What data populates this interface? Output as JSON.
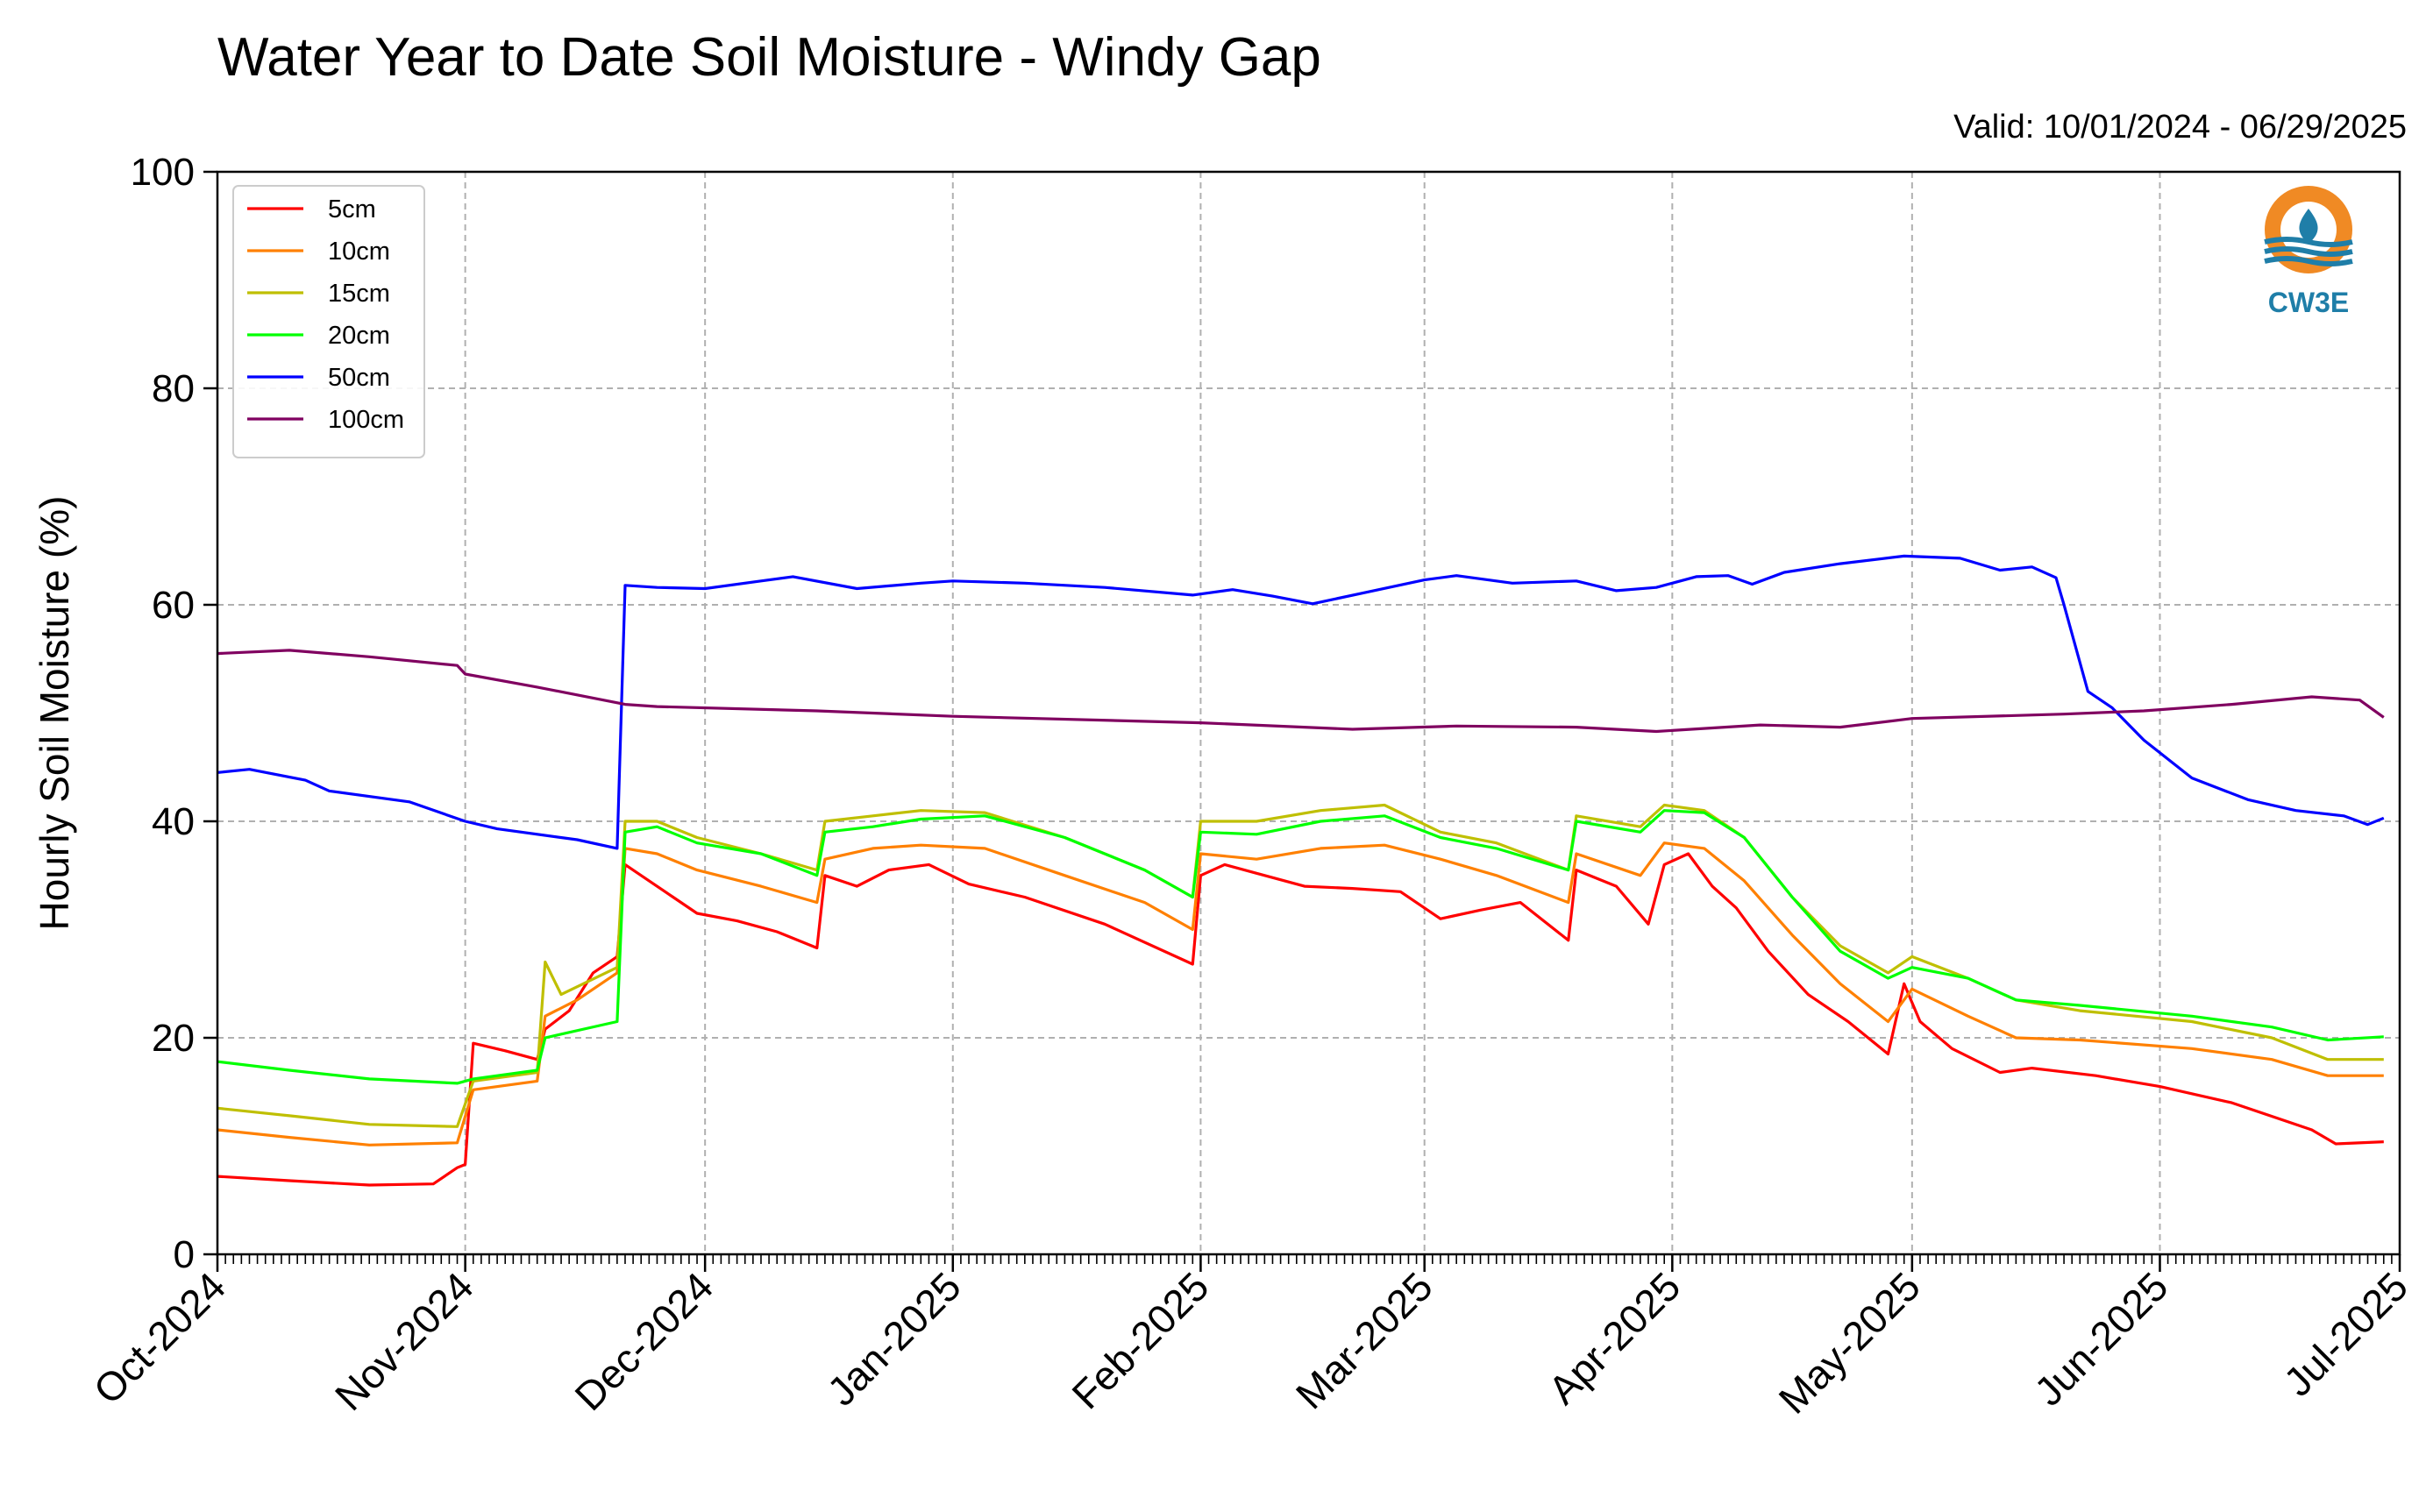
{
  "chart_data": {
    "type": "line",
    "title": "Water Year to Date Soil Moisture - Windy Gap",
    "subtitle": "Valid: 10/01/2024 - 06/29/2025",
    "ylabel": "Hourly Soil Moisture (%)",
    "xlabel": "",
    "ylim": [
      0,
      100
    ],
    "yticks": [
      0,
      20,
      40,
      60,
      80,
      100
    ],
    "xlim": [
      "2024-10-01",
      "2025-07-01"
    ],
    "xticks": [
      {
        "date": "2024-10-01",
        "label": "Oct-2024"
      },
      {
        "date": "2024-11-01",
        "label": "Nov-2024"
      },
      {
        "date": "2024-12-01",
        "label": "Dec-2024"
      },
      {
        "date": "2025-01-01",
        "label": "Jan-2025"
      },
      {
        "date": "2025-02-01",
        "label": "Feb-2025"
      },
      {
        "date": "2025-03-01",
        "label": "Mar-2025"
      },
      {
        "date": "2025-04-01",
        "label": "Apr-2025"
      },
      {
        "date": "2025-05-01",
        "label": "May-2025"
      },
      {
        "date": "2025-06-01",
        "label": "Jun-2025"
      },
      {
        "date": "2025-07-01",
        "label": "Jul-2025"
      }
    ],
    "grid": true,
    "legend_position": "top-left",
    "logo": {
      "text": "CW3E",
      "ring_color": "#f08a24",
      "wave_color": "#1f7ea8"
    },
    "series": [
      {
        "name": "5cm",
        "color": "#ff0000",
        "points": [
          [
            "2024-10-01",
            7.2
          ],
          [
            "2024-10-10",
            6.8
          ],
          [
            "2024-10-20",
            6.4
          ],
          [
            "2024-10-28",
            6.5
          ],
          [
            "2024-10-31",
            8.0
          ],
          [
            "2024-11-01",
            8.3
          ],
          [
            "2024-11-02",
            19.5
          ],
          [
            "2024-11-06",
            18.8
          ],
          [
            "2024-11-10",
            18.0
          ],
          [
            "2024-11-11",
            20.8
          ],
          [
            "2024-11-14",
            22.5
          ],
          [
            "2024-11-17",
            26.0
          ],
          [
            "2024-11-20",
            27.5
          ],
          [
            "2024-11-21",
            36.0
          ],
          [
            "2024-11-24",
            34.5
          ],
          [
            "2024-11-27",
            33.0
          ],
          [
            "2024-11-30",
            31.5
          ],
          [
            "2024-12-05",
            30.8
          ],
          [
            "2024-12-10",
            29.8
          ],
          [
            "2024-12-15",
            28.3
          ],
          [
            "2024-12-16",
            35.0
          ],
          [
            "2024-12-20",
            34.0
          ],
          [
            "2024-12-24",
            35.5
          ],
          [
            "2024-12-29",
            36.0
          ],
          [
            "2025-01-03",
            34.2
          ],
          [
            "2025-01-10",
            33.0
          ],
          [
            "2025-01-20",
            30.5
          ],
          [
            "2025-01-31",
            26.8
          ],
          [
            "2025-02-01",
            35.0
          ],
          [
            "2025-02-04",
            36.0
          ],
          [
            "2025-02-08",
            35.2
          ],
          [
            "2025-02-14",
            34.0
          ],
          [
            "2025-02-20",
            33.8
          ],
          [
            "2025-02-26",
            33.5
          ],
          [
            "2025-03-03",
            31.0
          ],
          [
            "2025-03-08",
            31.8
          ],
          [
            "2025-03-13",
            32.5
          ],
          [
            "2025-03-19",
            29.0
          ],
          [
            "2025-03-20",
            35.5
          ],
          [
            "2025-03-25",
            34.0
          ],
          [
            "2025-03-29",
            30.5
          ],
          [
            "2025-03-31",
            36.0
          ],
          [
            "2025-04-03",
            37.0
          ],
          [
            "2025-04-06",
            34.0
          ],
          [
            "2025-04-09",
            32.0
          ],
          [
            "2025-04-13",
            28.0
          ],
          [
            "2025-04-18",
            24.0
          ],
          [
            "2025-04-23",
            21.5
          ],
          [
            "2025-04-28",
            18.5
          ],
          [
            "2025-04-30",
            25.0
          ],
          [
            "2025-05-02",
            21.5
          ],
          [
            "2025-05-06",
            19.0
          ],
          [
            "2025-05-12",
            16.8
          ],
          [
            "2025-05-16",
            17.2
          ],
          [
            "2025-05-24",
            16.5
          ],
          [
            "2025-06-01",
            15.5
          ],
          [
            "2025-06-10",
            14.0
          ],
          [
            "2025-06-20",
            11.5
          ],
          [
            "2025-06-23",
            10.2
          ],
          [
            "2025-06-29",
            10.4
          ]
        ]
      },
      {
        "name": "10cm",
        "color": "#ff8000",
        "points": [
          [
            "2024-10-01",
            11.5
          ],
          [
            "2024-10-10",
            10.8
          ],
          [
            "2024-10-20",
            10.1
          ],
          [
            "2024-10-31",
            10.3
          ],
          [
            "2024-11-02",
            15.2
          ],
          [
            "2024-11-10",
            16.0
          ],
          [
            "2024-11-11",
            22.0
          ],
          [
            "2024-11-15",
            23.5
          ],
          [
            "2024-11-20",
            26.0
          ],
          [
            "2024-11-21",
            37.5
          ],
          [
            "2024-11-25",
            37.0
          ],
          [
            "2024-11-30",
            35.5
          ],
          [
            "2024-12-08",
            34.0
          ],
          [
            "2024-12-15",
            32.5
          ],
          [
            "2024-12-16",
            36.5
          ],
          [
            "2024-12-22",
            37.5
          ],
          [
            "2024-12-28",
            37.8
          ],
          [
            "2025-01-05",
            37.5
          ],
          [
            "2025-01-15",
            35.0
          ],
          [
            "2025-01-25",
            32.5
          ],
          [
            "2025-01-31",
            30.0
          ],
          [
            "2025-02-01",
            37.0
          ],
          [
            "2025-02-08",
            36.5
          ],
          [
            "2025-02-16",
            37.5
          ],
          [
            "2025-02-24",
            37.8
          ],
          [
            "2025-03-03",
            36.5
          ],
          [
            "2025-03-10",
            35.0
          ],
          [
            "2025-03-19",
            32.5
          ],
          [
            "2025-03-20",
            37.0
          ],
          [
            "2025-03-28",
            35.0
          ],
          [
            "2025-03-31",
            38.0
          ],
          [
            "2025-04-05",
            37.5
          ],
          [
            "2025-04-10",
            34.5
          ],
          [
            "2025-04-16",
            29.5
          ],
          [
            "2025-04-22",
            25.0
          ],
          [
            "2025-04-28",
            21.5
          ],
          [
            "2025-05-01",
            24.5
          ],
          [
            "2025-05-08",
            22.0
          ],
          [
            "2025-05-14",
            20.0
          ],
          [
            "2025-05-22",
            19.8
          ],
          [
            "2025-06-05",
            19.0
          ],
          [
            "2025-06-15",
            18.0
          ],
          [
            "2025-06-22",
            16.5
          ],
          [
            "2025-06-29",
            16.5
          ]
        ]
      },
      {
        "name": "15cm",
        "color": "#bfbf00",
        "points": [
          [
            "2024-10-01",
            13.5
          ],
          [
            "2024-10-10",
            12.8
          ],
          [
            "2024-10-20",
            12.0
          ],
          [
            "2024-10-31",
            11.8
          ],
          [
            "2024-11-02",
            16.0
          ],
          [
            "2024-11-10",
            16.8
          ],
          [
            "2024-11-11",
            27.0
          ],
          [
            "2024-11-13",
            24.0
          ],
          [
            "2024-11-20",
            26.5
          ],
          [
            "2024-11-21",
            40.0
          ],
          [
            "2024-11-25",
            40.0
          ],
          [
            "2024-11-30",
            38.5
          ],
          [
            "2024-12-08",
            37.0
          ],
          [
            "2024-12-15",
            35.5
          ],
          [
            "2024-12-16",
            40.0
          ],
          [
            "2024-12-22",
            40.5
          ],
          [
            "2024-12-28",
            41.0
          ],
          [
            "2025-01-05",
            40.8
          ],
          [
            "2025-01-15",
            38.5
          ],
          [
            "2025-01-25",
            35.5
          ],
          [
            "2025-01-31",
            33.0
          ],
          [
            "2025-02-01",
            40.0
          ],
          [
            "2025-02-08",
            40.0
          ],
          [
            "2025-02-16",
            41.0
          ],
          [
            "2025-02-24",
            41.5
          ],
          [
            "2025-03-03",
            39.0
          ],
          [
            "2025-03-10",
            38.0
          ],
          [
            "2025-03-19",
            35.5
          ],
          [
            "2025-03-20",
            40.5
          ],
          [
            "2025-03-28",
            39.5
          ],
          [
            "2025-03-31",
            41.5
          ],
          [
            "2025-04-05",
            41.0
          ],
          [
            "2025-04-10",
            38.5
          ],
          [
            "2025-04-16",
            33.0
          ],
          [
            "2025-04-22",
            28.5
          ],
          [
            "2025-04-28",
            26.0
          ],
          [
            "2025-05-01",
            27.5
          ],
          [
            "2025-05-08",
            25.5
          ],
          [
            "2025-05-14",
            23.5
          ],
          [
            "2025-05-22",
            22.5
          ],
          [
            "2025-06-05",
            21.5
          ],
          [
            "2025-06-15",
            20.0
          ],
          [
            "2025-06-22",
            18.0
          ],
          [
            "2025-06-29",
            18.0
          ]
        ]
      },
      {
        "name": "20cm",
        "color": "#00ff00",
        "points": [
          [
            "2024-10-01",
            17.8
          ],
          [
            "2024-10-10",
            17.0
          ],
          [
            "2024-10-20",
            16.2
          ],
          [
            "2024-10-31",
            15.8
          ],
          [
            "2024-11-02",
            16.2
          ],
          [
            "2024-11-10",
            17.0
          ],
          [
            "2024-11-11",
            20.0
          ],
          [
            "2024-11-20",
            21.5
          ],
          [
            "2024-11-21",
            39.0
          ],
          [
            "2024-11-25",
            39.5
          ],
          [
            "2024-11-30",
            38.0
          ],
          [
            "2024-12-08",
            37.0
          ],
          [
            "2024-12-15",
            35.0
          ],
          [
            "2024-12-16",
            39.0
          ],
          [
            "2024-12-22",
            39.5
          ],
          [
            "2024-12-28",
            40.2
          ],
          [
            "2025-01-05",
            40.5
          ],
          [
            "2025-01-15",
            38.5
          ],
          [
            "2025-01-25",
            35.5
          ],
          [
            "2025-01-31",
            33.0
          ],
          [
            "2025-02-01",
            39.0
          ],
          [
            "2025-02-08",
            38.8
          ],
          [
            "2025-02-16",
            40.0
          ],
          [
            "2025-02-24",
            40.5
          ],
          [
            "2025-03-03",
            38.5
          ],
          [
            "2025-03-10",
            37.5
          ],
          [
            "2025-03-19",
            35.5
          ],
          [
            "2025-03-20",
            40.0
          ],
          [
            "2025-03-28",
            39.0
          ],
          [
            "2025-03-31",
            41.0
          ],
          [
            "2025-04-05",
            40.8
          ],
          [
            "2025-04-10",
            38.5
          ],
          [
            "2025-04-16",
            33.0
          ],
          [
            "2025-04-22",
            28.0
          ],
          [
            "2025-04-28",
            25.5
          ],
          [
            "2025-05-01",
            26.5
          ],
          [
            "2025-05-08",
            25.5
          ],
          [
            "2025-05-14",
            23.5
          ],
          [
            "2025-05-22",
            23.0
          ],
          [
            "2025-06-05",
            22.0
          ],
          [
            "2025-06-15",
            21.0
          ],
          [
            "2025-06-22",
            19.8
          ],
          [
            "2025-06-29",
            20.1
          ]
        ]
      },
      {
        "name": "50cm",
        "color": "#0000ff",
        "points": [
          [
            "2024-10-01",
            44.5
          ],
          [
            "2024-10-05",
            44.8
          ],
          [
            "2024-10-12",
            43.8
          ],
          [
            "2024-10-15",
            42.8
          ],
          [
            "2024-10-25",
            41.8
          ],
          [
            "2024-11-01",
            40.0
          ],
          [
            "2024-11-05",
            39.3
          ],
          [
            "2024-11-15",
            38.3
          ],
          [
            "2024-11-20",
            37.5
          ],
          [
            "2024-11-21",
            61.8
          ],
          [
            "2024-11-25",
            61.6
          ],
          [
            "2024-12-01",
            61.5
          ],
          [
            "2024-12-08",
            62.2
          ],
          [
            "2024-12-12",
            62.6
          ],
          [
            "2024-12-20",
            61.5
          ],
          [
            "2024-12-28",
            62.0
          ],
          [
            "2025-01-01",
            62.2
          ],
          [
            "2025-01-10",
            62.0
          ],
          [
            "2025-01-20",
            61.6
          ],
          [
            "2025-01-31",
            60.9
          ],
          [
            "2025-02-05",
            61.4
          ],
          [
            "2025-02-10",
            60.8
          ],
          [
            "2025-02-15",
            60.1
          ],
          [
            "2025-02-22",
            61.2
          ],
          [
            "2025-03-01",
            62.3
          ],
          [
            "2025-03-05",
            62.7
          ],
          [
            "2025-03-12",
            62.0
          ],
          [
            "2025-03-20",
            62.2
          ],
          [
            "2025-03-25",
            61.3
          ],
          [
            "2025-03-30",
            61.6
          ],
          [
            "2025-04-04",
            62.6
          ],
          [
            "2025-04-08",
            62.7
          ],
          [
            "2025-04-11",
            61.9
          ],
          [
            "2025-04-15",
            63.0
          ],
          [
            "2025-04-22",
            63.8
          ],
          [
            "2025-04-30",
            64.5
          ],
          [
            "2025-05-07",
            64.3
          ],
          [
            "2025-05-12",
            63.2
          ],
          [
            "2025-05-16",
            63.5
          ],
          [
            "2025-05-19",
            62.5
          ],
          [
            "2025-05-20",
            60.0
          ],
          [
            "2025-05-23",
            52.0
          ],
          [
            "2025-05-26",
            50.5
          ],
          [
            "2025-05-30",
            47.5
          ],
          [
            "2025-06-05",
            44.0
          ],
          [
            "2025-06-12",
            42.0
          ],
          [
            "2025-06-18",
            41.0
          ],
          [
            "2025-06-24",
            40.5
          ],
          [
            "2025-06-27",
            39.7
          ],
          [
            "2025-06-29",
            40.3
          ]
        ]
      },
      {
        "name": "100cm",
        "color": "#800060",
        "points": [
          [
            "2024-10-01",
            55.5
          ],
          [
            "2024-10-10",
            55.8
          ],
          [
            "2024-10-20",
            55.2
          ],
          [
            "2024-10-31",
            54.4
          ],
          [
            "2024-11-01",
            53.6
          ],
          [
            "2024-11-10",
            52.4
          ],
          [
            "2024-11-21",
            50.8
          ],
          [
            "2024-11-25",
            50.6
          ],
          [
            "2024-12-15",
            50.2
          ],
          [
            "2025-01-01",
            49.7
          ],
          [
            "2025-02-01",
            49.1
          ],
          [
            "2025-02-20",
            48.5
          ],
          [
            "2025-03-05",
            48.8
          ],
          [
            "2025-03-20",
            48.7
          ],
          [
            "2025-03-30",
            48.3
          ],
          [
            "2025-04-12",
            48.9
          ],
          [
            "2025-04-22",
            48.7
          ],
          [
            "2025-05-01",
            49.5
          ],
          [
            "2025-05-20",
            49.9
          ],
          [
            "2025-05-30",
            50.2
          ],
          [
            "2025-06-10",
            50.8
          ],
          [
            "2025-06-20",
            51.5
          ],
          [
            "2025-06-26",
            51.2
          ],
          [
            "2025-06-29",
            49.6
          ]
        ]
      }
    ]
  }
}
